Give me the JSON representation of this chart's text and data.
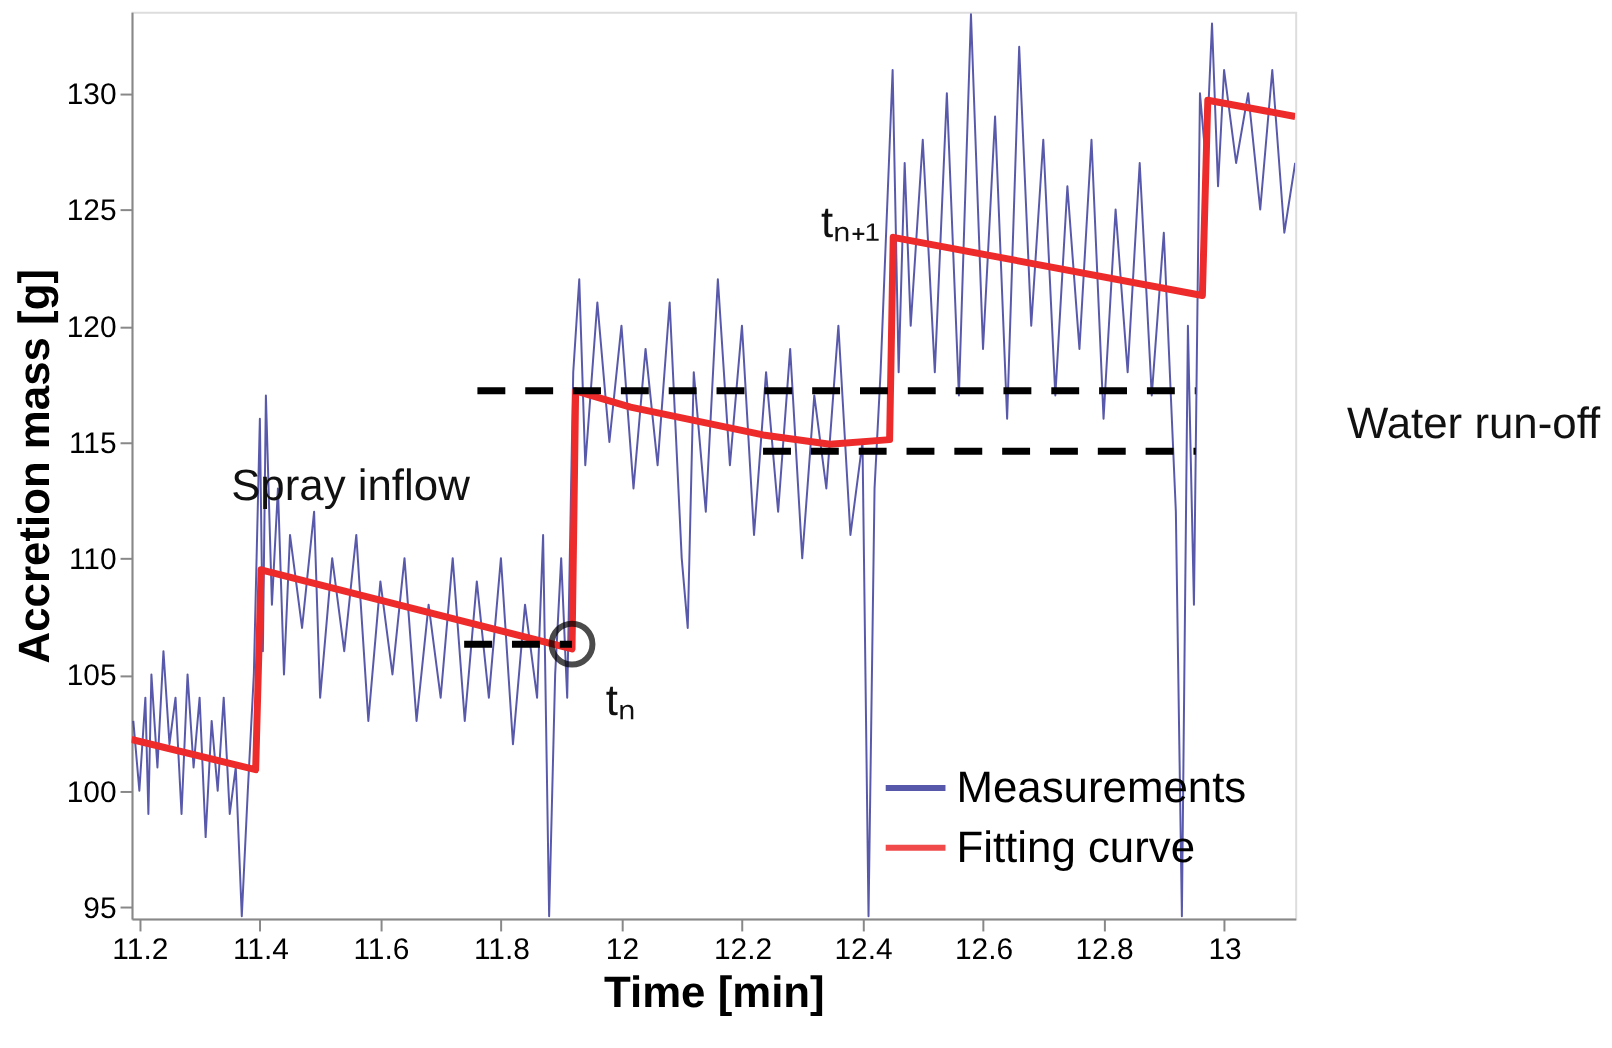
{
  "chart_data": {
    "type": "line",
    "xlabel": "Time [min]",
    "ylabel": "Accretion mass [g]",
    "xlim": [
      11.187,
      13.118
    ],
    "ylim": [
      94.5,
      133.5
    ],
    "xticks": [
      11.2,
      11.4,
      11.6,
      11.8,
      {
        "value": 12,
        "label": "12"
      },
      12.2,
      12.4,
      12.6,
      12.8,
      {
        "value": 13,
        "label": "13"
      }
    ],
    "yticks": [
      95,
      100,
      105,
      110,
      115,
      120,
      125,
      130
    ],
    "grid": false,
    "legend": "bottom right",
    "series": [
      {
        "name": "Measurements",
        "color": "#3c3c9c",
        "x": [
          11.19,
          11.2,
          11.21,
          11.215,
          11.22,
          11.23,
          11.24,
          11.25,
          11.26,
          11.27,
          11.28,
          11.29,
          11.3,
          11.31,
          11.32,
          11.33,
          11.34,
          11.35,
          11.36,
          11.37,
          11.38,
          11.39,
          11.4,
          11.405,
          11.41,
          11.42,
          11.43,
          11.44,
          11.45,
          11.47,
          11.49,
          11.5,
          11.52,
          11.54,
          11.56,
          11.58,
          11.6,
          11.62,
          11.64,
          11.66,
          11.68,
          11.7,
          11.72,
          11.74,
          11.76,
          11.78,
          11.8,
          11.82,
          11.84,
          11.86,
          11.87,
          11.88,
          11.89,
          11.9,
          11.91,
          11.92,
          11.93,
          11.94,
          11.96,
          11.98,
          12.0,
          12.02,
          12.04,
          12.06,
          12.08,
          12.1,
          12.11,
          12.12,
          12.14,
          12.16,
          12.18,
          12.2,
          12.22,
          12.24,
          12.26,
          12.28,
          12.3,
          12.32,
          12.34,
          12.36,
          12.38,
          12.4,
          12.41,
          12.42,
          12.43,
          12.45,
          12.46,
          12.47,
          12.48,
          12.5,
          12.52,
          12.54,
          12.56,
          12.58,
          12.6,
          12.62,
          12.64,
          12.66,
          12.68,
          12.7,
          12.72,
          12.74,
          12.76,
          12.78,
          12.8,
          12.82,
          12.84,
          12.86,
          12.88,
          12.9,
          12.92,
          12.93,
          12.94,
          12.95,
          12.96,
          12.97,
          12.98,
          12.99,
          13.0,
          13.02,
          13.04,
          13.06,
          13.08,
          13.1,
          13.118
        ],
        "values": [
          103,
          100,
          104,
          99,
          105,
          101,
          106,
          102,
          104,
          99,
          105,
          101,
          104,
          98,
          103,
          100,
          104,
          99,
          101,
          94.6,
          100,
          105,
          116,
          106,
          117,
          108,
          113,
          105,
          111,
          107,
          112,
          104,
          110,
          106,
          111,
          103,
          109,
          105,
          110,
          103,
          108,
          104,
          110,
          103,
          109,
          104,
          110,
          102,
          108,
          104,
          111,
          94.6,
          105,
          110,
          104,
          118,
          122,
          114,
          121,
          115,
          120,
          113,
          119,
          114,
          121,
          110,
          107,
          118,
          112,
          122,
          114,
          120,
          111,
          118,
          112,
          119,
          110,
          117,
          113,
          120,
          111,
          115,
          94.6,
          113,
          118,
          131,
          118,
          127,
          120,
          128,
          118,
          130,
          117,
          133.4,
          119,
          129,
          116,
          132,
          120,
          128,
          117,
          126,
          119,
          128,
          116,
          125,
          118,
          127,
          117,
          124,
          112,
          94.6,
          120,
          108,
          130,
          127,
          133,
          126,
          131,
          127,
          130,
          125,
          131,
          124,
          127
        ]
      },
      {
        "name": "Fitting curve",
        "color": "#ee2b2b",
        "x": [
          11.187,
          11.393,
          11.402,
          11.918,
          11.924,
          12.015,
          12.235,
          12.346,
          12.445,
          12.451,
          12.964,
          12.973,
          13.118
        ],
        "values": [
          102.2,
          100.9,
          109.5,
          106.1,
          117.2,
          116.5,
          115.3,
          114.9,
          115.1,
          123.8,
          121.3,
          129.7,
          129.0
        ]
      },
      {
        "color": "#000000",
        "line_style": "dashed",
        "x": [
          11.761,
          12.953
        ],
        "values": [
          117.2,
          117.2
        ]
      },
      {
        "color": "#000000",
        "line_style": "dashed",
        "x": [
          12.235,
          12.953
        ],
        "values": [
          114.6,
          114.6
        ]
      },
      {
        "color": "#000000",
        "line_style": "dashed",
        "x": [
          11.739,
          11.918
        ],
        "values": [
          106.3,
          106.3
        ]
      },
      {
        "type": "scatter",
        "marker": "circle",
        "color": "#000000",
        "x": [
          11.918
        ],
        "values": [
          106.3
        ]
      }
    ],
    "annotations": [
      "Spray inflow",
      "Water run-off",
      "tₙ",
      "tₙ₊₁"
    ]
  }
}
